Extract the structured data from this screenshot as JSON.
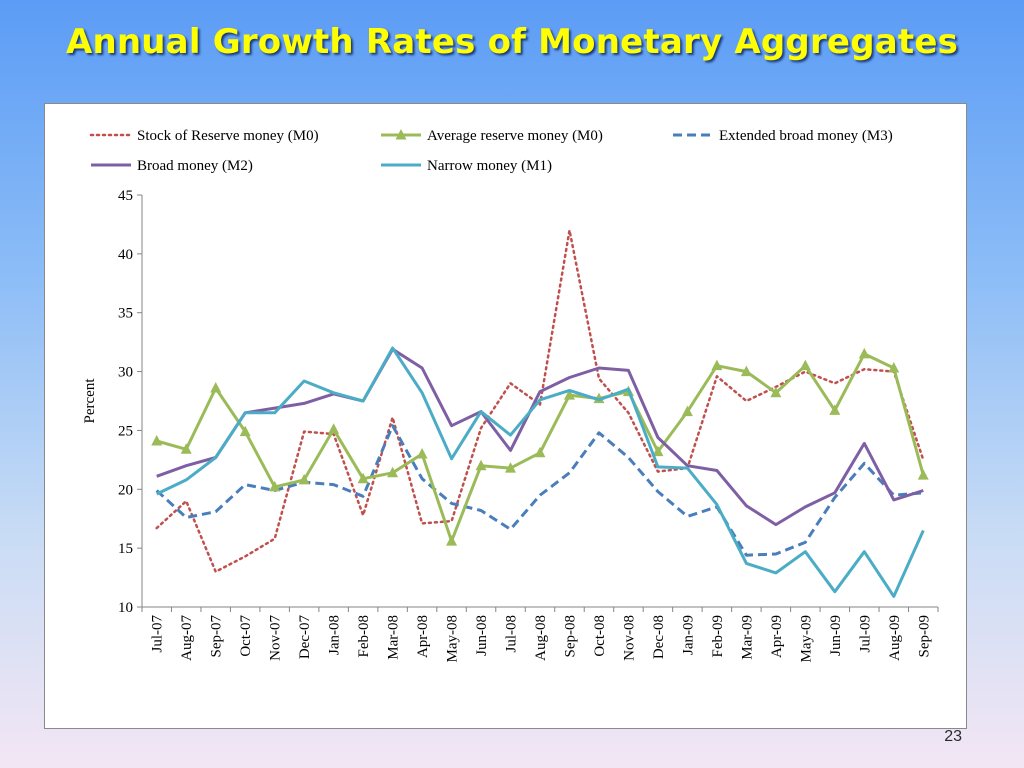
{
  "slide": {
    "title": "Annual Growth Rates of Monetary Aggregates",
    "page_number": "23"
  },
  "chart_data": {
    "type": "line",
    "ylabel": "Percent",
    "xlabel": "",
    "ylim": [
      10,
      45
    ],
    "yticks": [
      10,
      15,
      20,
      25,
      30,
      35,
      40,
      45
    ],
    "grid": false,
    "legend_position": "top",
    "categories": [
      "Jul-07",
      "Aug-07",
      "Sep-07",
      "Oct-07",
      "Nov-07",
      "Dec-07",
      "Jan-08",
      "Feb-08",
      "Mar-08",
      "Apr-08",
      "May-08",
      "Jun-08",
      "Jul-08",
      "Aug-08",
      "Sep-08",
      "Oct-08",
      "Nov-08",
      "Dec-08",
      "Jan-09",
      "Feb-09",
      "Mar-09",
      "Apr-09",
      "May-09",
      "Jun-09",
      "Jul-09",
      "Aug-09",
      "Sep-09"
    ],
    "series": [
      {
        "name": "Stock of Reserve money (M0)",
        "color": "#c0504d",
        "style": "dotted",
        "marker": "none",
        "values": [
          16.7,
          19.0,
          13.0,
          14.3,
          15.8,
          24.9,
          24.7,
          17.8,
          26.1,
          17.1,
          17.3,
          25.2,
          29.0,
          27.2,
          42.0,
          29.4,
          26.5,
          21.5,
          21.8,
          29.6,
          27.5,
          28.7,
          30.0,
          29.0,
          30.2,
          30.0,
          22.5
        ]
      },
      {
        "name": "Average reserve money (M0)",
        "color": "#9bbb59",
        "style": "solid",
        "marker": "triangle",
        "values": [
          24.1,
          23.4,
          28.6,
          24.9,
          20.2,
          20.8,
          25.1,
          20.9,
          21.4,
          23.0,
          15.6,
          22.0,
          21.8,
          23.1,
          28.0,
          27.7,
          28.3,
          23.2,
          26.6,
          30.5,
          30.0,
          28.2,
          30.5,
          26.7,
          31.5,
          30.3,
          21.2
        ]
      },
      {
        "name": "Extended broad money (M3)",
        "color": "#4a7ebb",
        "style": "dashed",
        "marker": "none",
        "values": [
          19.9,
          17.6,
          18.1,
          20.4,
          19.9,
          20.6,
          20.4,
          19.4,
          25.4,
          20.9,
          18.8,
          18.2,
          16.6,
          19.5,
          21.4,
          24.8,
          22.7,
          19.8,
          17.7,
          18.5,
          14.4,
          14.5,
          15.5,
          19.3,
          22.2,
          19.5,
          19.7
        ]
      },
      {
        "name": "Broad money (M2)",
        "color": "#7f5fa3",
        "style": "solid",
        "marker": "none",
        "values": [
          21.1,
          22.0,
          22.7,
          26.5,
          26.9,
          27.3,
          28.1,
          27.5,
          31.9,
          30.3,
          25.4,
          26.6,
          23.3,
          28.3,
          29.5,
          30.3,
          30.1,
          24.4,
          22.0,
          21.6,
          18.6,
          17.0,
          18.5,
          19.7,
          23.9,
          19.1,
          19.9
        ]
      },
      {
        "name": "Narrow money (M1)",
        "color": "#4bacc6",
        "style": "solid",
        "marker": "none",
        "values": [
          19.6,
          20.8,
          22.7,
          26.5,
          26.5,
          29.2,
          28.2,
          27.5,
          32.0,
          28.2,
          22.6,
          26.6,
          24.6,
          27.6,
          28.4,
          27.6,
          28.5,
          21.9,
          21.8,
          18.7,
          13.7,
          12.9,
          14.7,
          11.3,
          14.7,
          10.9,
          16.5
        ]
      }
    ]
  }
}
